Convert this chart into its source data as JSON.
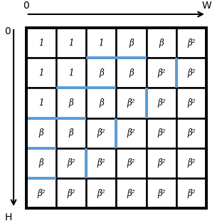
{
  "grid_rows": 6,
  "grid_cols": 6,
  "cell_values": [
    [
      "1",
      "1",
      "1",
      "β",
      "β",
      "β²"
    ],
    [
      "1",
      "1",
      "β",
      "β",
      "β²",
      "β²"
    ],
    [
      "1",
      "β",
      "β",
      "β²",
      "β²",
      "β²"
    ],
    [
      "β",
      "β",
      "β²",
      "β²",
      "β²",
      "β²"
    ],
    [
      "β",
      "β²",
      "β²",
      "β²",
      "β²",
      "β²"
    ],
    [
      "β²",
      "β²",
      "β²",
      "β²",
      "β²",
      "β²"
    ]
  ],
  "blue_segments": [
    {
      "type": "h",
      "row": 0,
      "c1": 3,
      "c2": 5
    },
    {
      "type": "v",
      "col": 5,
      "r1": 0,
      "r2": 1
    },
    {
      "type": "h",
      "row": 1,
      "c1": 2,
      "c2": 4
    },
    {
      "type": "v",
      "col": 4,
      "r1": 1,
      "r2": 2
    },
    {
      "type": "h",
      "row": 2,
      "c1": 1,
      "c2": 3
    },
    {
      "type": "v",
      "col": 3,
      "r1": 2,
      "r2": 3
    },
    {
      "type": "h",
      "row": 3,
      "c1": 0,
      "c2": 2
    },
    {
      "type": "v",
      "col": 2,
      "r1": 3,
      "r2": 4
    },
    {
      "type": "h",
      "row": 4,
      "c1": 0,
      "c2": 1
    },
    {
      "type": "v",
      "col": 1,
      "r1": 4,
      "r2": 5
    },
    {
      "type": "h",
      "row": 5,
      "c1": 0,
      "c2": 1
    }
  ],
  "blue_color": "#5b9bd5",
  "blue_linewidth": 2.8,
  "grid_color": "#000000",
  "grid_linewidth": 1.8,
  "outer_linewidth": 2.8,
  "cell_fontsize": 8.5,
  "background": "white",
  "label_0_top": "0",
  "label_W_top": "W",
  "label_0_left": "0",
  "label_H_bottom": "H",
  "label_fontsize": 10
}
